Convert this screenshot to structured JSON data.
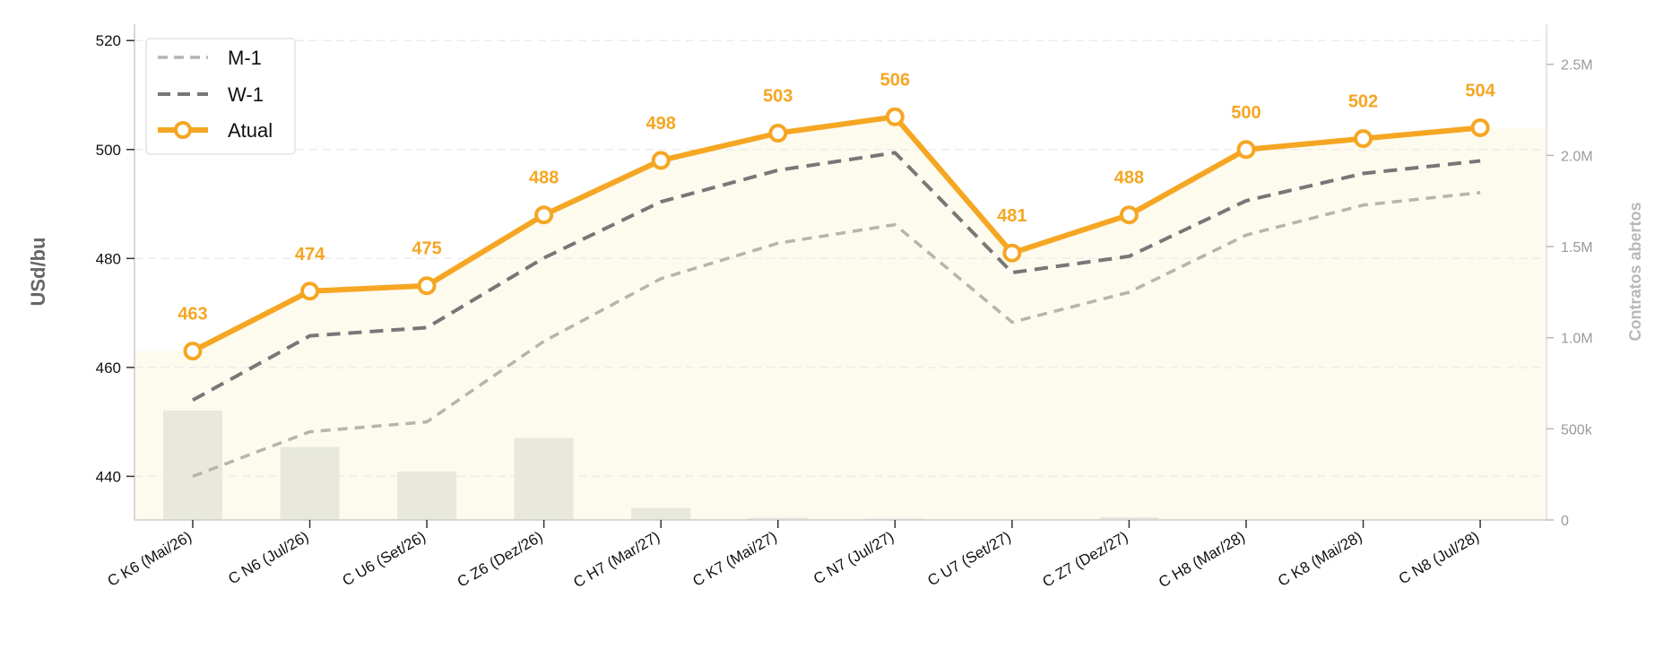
{
  "chart_data": {
    "type": "line",
    "xlabel": "",
    "ylabel": "USd/bu",
    "y2label": "Contratos abertos",
    "ylim": [
      432,
      523
    ],
    "y2lim": [
      0,
      2720000
    ],
    "yticks": [
      440,
      460,
      480,
      500,
      520
    ],
    "y2ticks": [
      0,
      500000,
      1000000,
      1500000,
      2000000,
      2500000
    ],
    "y2tick_labels": [
      "0",
      "500k",
      "1.0M",
      "1.5M",
      "2.0M",
      "2.5M"
    ],
    "grid": true,
    "legend_position": "top-left",
    "categories": [
      "C K6 (Mai/26)",
      "C N6 (Jul/26)",
      "C U6 (Set/26)",
      "C Z6 (Dez/26)",
      "C H7 (Mar/27)",
      "C K7 (Mai/27)",
      "C N7 (Jul/27)",
      "C U7 (Set/27)",
      "C Z7 (Dez/27)",
      "C H8 (Mar/28)",
      "C K8 (Mai/28)",
      "C N8 (Jul/28)"
    ],
    "series": [
      {
        "name": "M-1",
        "style": "dashed",
        "color": "#b5b5ad",
        "values": [
          440.0,
          448.2,
          450.0,
          464.8,
          476.3,
          482.8,
          486.2,
          468.3,
          473.8,
          484.3,
          489.8,
          492.1
        ]
      },
      {
        "name": "W-1",
        "style": "dashed",
        "color": "#777777",
        "values": [
          454.0,
          465.8,
          467.3,
          480.1,
          490.4,
          496.2,
          499.4,
          477.4,
          480.4,
          490.6,
          495.6,
          497.9
        ]
      },
      {
        "name": "Atual",
        "style": "solid",
        "color": "#f5a623",
        "values": [
          463,
          474,
          475,
          488,
          498,
          503,
          506,
          481,
          488,
          500,
          502,
          504
        ],
        "data_labels": [
          "463",
          "474",
          "475",
          "488",
          "498",
          "503",
          "506",
          "481",
          "488",
          "500",
          "502",
          "504"
        ]
      }
    ],
    "open_interest": {
      "name": "Contratos abertos",
      "color": "#e8e8dc",
      "values": [
        600000,
        400000,
        265000,
        450000,
        65000,
        12000,
        8000,
        0,
        15000,
        0,
        0,
        0
      ]
    },
    "area_fill_color": "#fdfaee",
    "accent_color": "#f5a623"
  }
}
